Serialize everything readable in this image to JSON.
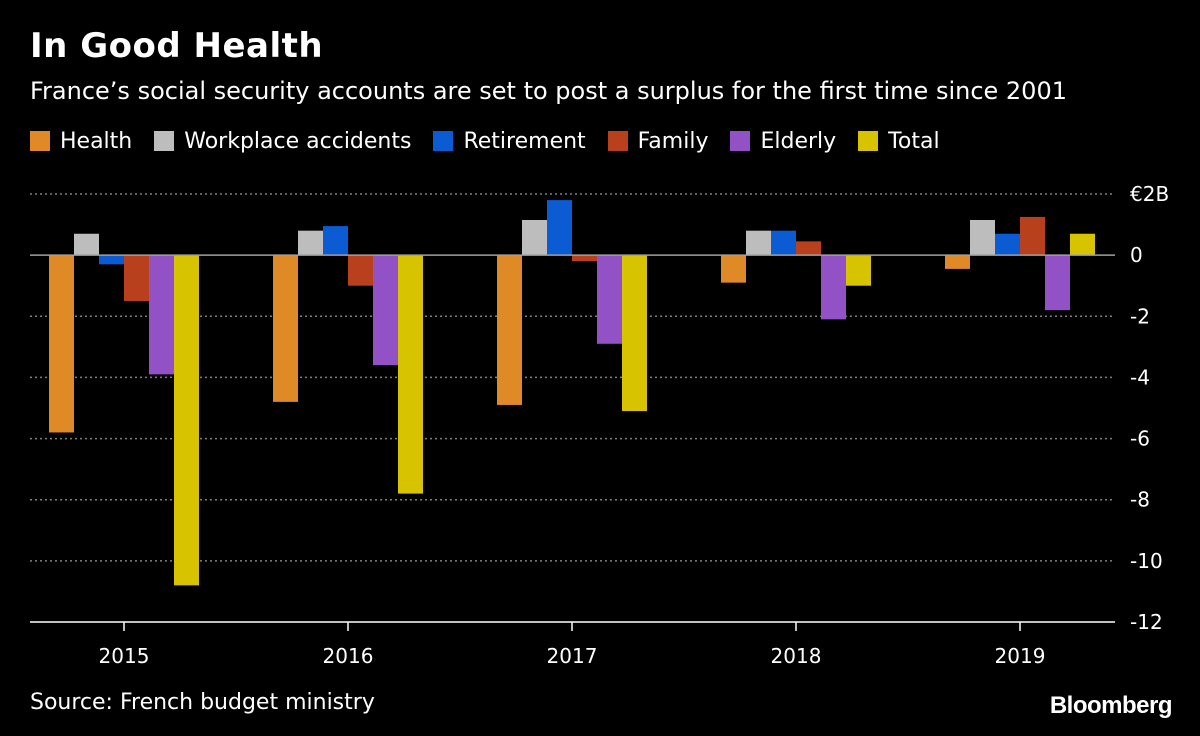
{
  "header": {
    "title": "In Good Health",
    "subtitle": "France’s social security accounts are set to post a surplus for the first time since 2001"
  },
  "footer": {
    "source": "Source: French budget ministry",
    "logo": "Bloomberg"
  },
  "colors": {
    "background": "#000000",
    "text": "#ffffff",
    "grid": "#7f7f7f"
  },
  "chart_data": {
    "type": "bar",
    "categories": [
      "2015",
      "2016",
      "2017",
      "2018",
      "2019"
    ],
    "series": [
      {
        "name": "Health",
        "color": "#e08a27",
        "values": [
          -5.8,
          -4.8,
          -4.9,
          -0.9,
          -0.45
        ]
      },
      {
        "name": "Workplace accidents",
        "color": "#bdbdbd",
        "values": [
          0.7,
          0.8,
          1.15,
          0.8,
          1.15
        ]
      },
      {
        "name": "Retirement",
        "color": "#0b5bd3",
        "values": [
          -0.3,
          0.95,
          1.8,
          0.8,
          0.7
        ]
      },
      {
        "name": "Family",
        "color": "#b8401d",
        "values": [
          -1.5,
          -1.0,
          -0.2,
          0.45,
          1.25
        ]
      },
      {
        "name": "Elderly",
        "color": "#9251c4",
        "values": [
          -3.9,
          -3.6,
          -2.9,
          -2.1,
          -1.8
        ]
      },
      {
        "name": "Total",
        "color": "#d8c300",
        "values": [
          -10.8,
          -7.8,
          -5.1,
          -1.0,
          0.7
        ]
      }
    ],
    "ylim": [
      -12,
      2
    ],
    "yticks": [
      2,
      0,
      -2,
      -4,
      -6,
      -8,
      -10,
      -12
    ],
    "ytick_labels": [
      "€2B",
      "0",
      "-2",
      "-4",
      "-6",
      "-8",
      "-10",
      "-12"
    ],
    "grid": true,
    "legend_position": "top-left"
  }
}
